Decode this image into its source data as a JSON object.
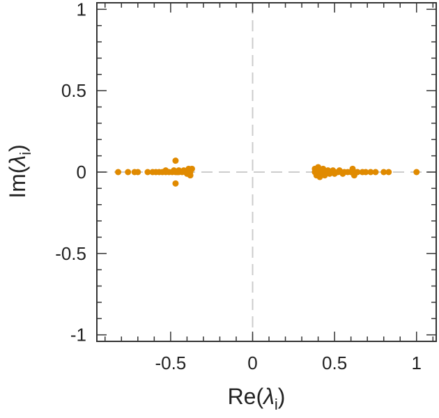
{
  "chart_data": {
    "type": "scatter",
    "title": "",
    "xlabel": {
      "prefix": "Re(",
      "symbol": "λ",
      "subscript": "i",
      "suffix": ")"
    },
    "ylabel": {
      "prefix": "Im(",
      "symbol": "λ",
      "subscript": "i",
      "suffix": ")"
    },
    "xlim": [
      -0.95,
      1.12
    ],
    "ylim": [
      -1.04,
      1.04
    ],
    "xticks": [
      {
        "value": -0.5,
        "label": "-0.5"
      },
      {
        "value": 0,
        "label": "0"
      },
      {
        "value": 0.5,
        "label": "0.5"
      },
      {
        "value": 1,
        "label": "1"
      }
    ],
    "yticks": [
      {
        "value": 1,
        "label": "1"
      },
      {
        "value": 0.5,
        "label": "0.5"
      },
      {
        "value": 0,
        "label": "0"
      },
      {
        "value": -0.5,
        "label": "-0.5"
      },
      {
        "value": -1,
        "label": "-1"
      }
    ],
    "x_minor_step": 0.1,
    "y_minor_step": 0.1,
    "grid": false,
    "reference_lines": [
      {
        "orientation": "vertical",
        "value": 0,
        "style": "dashed"
      },
      {
        "orientation": "horizontal",
        "value": 0,
        "style": "dashed"
      }
    ],
    "colors": {
      "points": "#e08a00",
      "axes": "#333333",
      "reference": "#cccccc"
    },
    "series": [
      {
        "points": [
          [
            -0.82,
            0.0
          ],
          [
            -0.76,
            0.0
          ],
          [
            -0.72,
            0.0
          ],
          [
            -0.7,
            0.0
          ],
          [
            -0.64,
            0.0
          ],
          [
            -0.61,
            0.0
          ],
          [
            -0.59,
            0.0
          ],
          [
            -0.57,
            0.0
          ],
          [
            -0.55,
            0.0
          ],
          [
            -0.53,
            0.0
          ],
          [
            -0.51,
            0.0
          ],
          [
            -0.49,
            0.0
          ],
          [
            -0.47,
            0.0
          ],
          [
            -0.46,
            0.0
          ],
          [
            -0.45,
            0.0
          ],
          [
            -0.43,
            0.0
          ],
          [
            -0.41,
            0.0
          ],
          [
            -0.4,
            0.0
          ],
          [
            -0.39,
            0.0
          ],
          [
            -0.38,
            0.0
          ],
          [
            -0.53,
            0.01
          ],
          [
            -0.48,
            0.01
          ],
          [
            -0.45,
            0.01
          ],
          [
            -0.42,
            0.01
          ],
          [
            -0.39,
            0.02
          ],
          [
            -0.37,
            0.02
          ],
          [
            -0.4,
            -0.01
          ],
          [
            -0.38,
            -0.02
          ],
          [
            -0.47,
            0.07
          ],
          [
            -0.47,
            -0.07
          ],
          [
            0.38,
            0.0
          ],
          [
            0.39,
            0.0
          ],
          [
            0.4,
            0.0
          ],
          [
            0.41,
            0.0
          ],
          [
            0.42,
            0.0
          ],
          [
            0.43,
            0.0
          ],
          [
            0.44,
            0.0
          ],
          [
            0.45,
            0.0
          ],
          [
            0.46,
            0.0
          ],
          [
            0.47,
            0.0
          ],
          [
            0.48,
            0.0
          ],
          [
            0.5,
            0.0
          ],
          [
            0.52,
            0.0
          ],
          [
            0.54,
            0.0
          ],
          [
            0.56,
            0.0
          ],
          [
            0.58,
            0.0
          ],
          [
            0.6,
            0.0
          ],
          [
            0.62,
            0.0
          ],
          [
            0.64,
            0.0
          ],
          [
            0.67,
            0.0
          ],
          [
            0.69,
            0.0
          ],
          [
            0.72,
            0.0
          ],
          [
            0.75,
            0.0
          ],
          [
            0.8,
            0.0
          ],
          [
            0.83,
            0.0
          ],
          [
            1.0,
            0.0
          ],
          [
            0.38,
            0.02
          ],
          [
            0.4,
            0.03
          ],
          [
            0.43,
            0.02
          ],
          [
            0.46,
            0.01
          ],
          [
            0.49,
            0.01
          ],
          [
            0.53,
            0.01
          ],
          [
            0.61,
            0.02
          ],
          [
            0.39,
            -0.02
          ],
          [
            0.41,
            -0.03
          ],
          [
            0.44,
            -0.02
          ],
          [
            0.47,
            -0.01
          ],
          [
            0.5,
            -0.01
          ],
          [
            0.55,
            -0.01
          ],
          [
            0.62,
            -0.02
          ]
        ]
      }
    ]
  }
}
